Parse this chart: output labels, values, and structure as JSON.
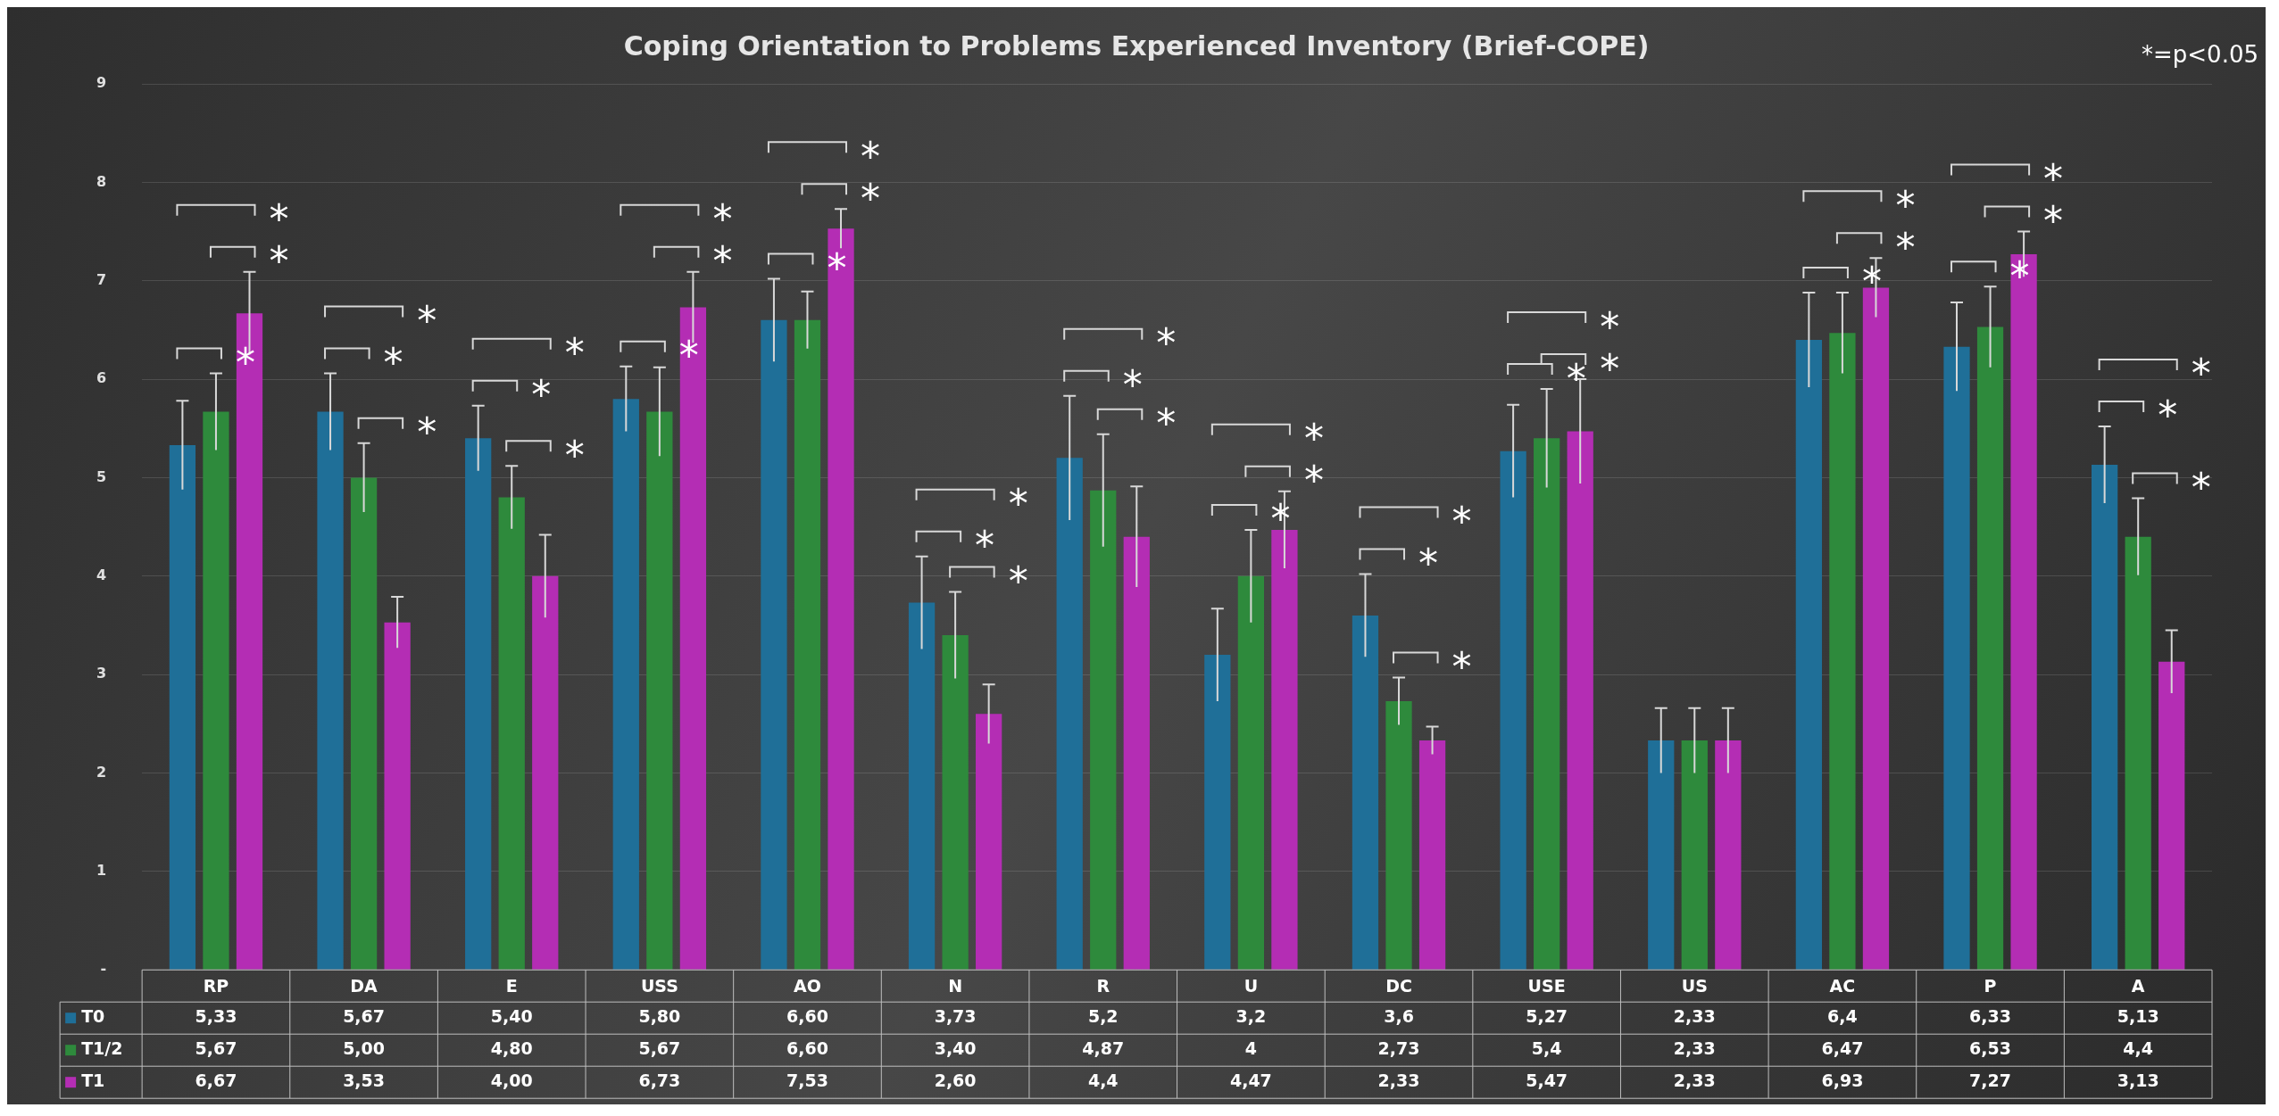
{
  "chart_data": {
    "type": "bar",
    "title": "Coping Orientation to Problems Experienced Inventory (Brief-COPE)",
    "categories": [
      "RP",
      "DA",
      "E",
      "USS",
      "AO",
      "N",
      "R",
      "U",
      "DC",
      "USE",
      "US",
      "AC",
      "P",
      "A"
    ],
    "series": [
      {
        "name": "T0",
        "color": "#1f6f98",
        "values": [
          5.33,
          5.67,
          5.4,
          5.8,
          6.6,
          3.73,
          5.2,
          3.2,
          3.6,
          5.27,
          2.33,
          6.4,
          6.33,
          5.13
        ],
        "value_labels": [
          "5,33",
          "5,67",
          "5,40",
          "5,80",
          "6,60",
          "3,73",
          "5,2",
          "3,2",
          "3,6",
          "5,27",
          "2,33",
          "6,4",
          "6,33",
          "5,13"
        ],
        "errors": [
          0.45,
          0.39,
          0.33,
          0.33,
          0.42,
          0.47,
          0.63,
          0.47,
          0.42,
          0.47,
          0.33,
          0.48,
          0.45,
          0.39
        ]
      },
      {
        "name": "T1/2",
        "color": "#2e8a3c",
        "values": [
          5.67,
          5.0,
          4.8,
          5.67,
          6.6,
          3.4,
          4.87,
          4,
          2.73,
          5.4,
          2.33,
          6.47,
          6.53,
          4.4
        ],
        "value_labels": [
          "5,67",
          "5,00",
          "4,80",
          "5,67",
          "6,60",
          "3,40",
          "4,87",
          "4",
          "2,73",
          "5,4",
          "2,33",
          "6,47",
          "6,53",
          "4,4"
        ],
        "errors": [
          0.39,
          0.35,
          0.32,
          0.45,
          0.29,
          0.44,
          0.57,
          0.47,
          0.24,
          0.5,
          0.33,
          0.41,
          0.41,
          0.39
        ]
      },
      {
        "name": "T1",
        "color": "#b42db4",
        "values": [
          6.67,
          3.53,
          4.0,
          6.73,
          7.53,
          2.6,
          4.4,
          4.47,
          2.33,
          5.47,
          2.33,
          6.93,
          7.27,
          3.13
        ],
        "value_labels": [
          "6,67",
          "3,53",
          "4,00",
          "6,73",
          "7,53",
          "2,60",
          "4,4",
          "4,47",
          "2,33",
          "5,47",
          "2,33",
          "6,93",
          "7,27",
          "3,13"
        ],
        "errors": [
          0.42,
          0.26,
          0.42,
          0.36,
          0.2,
          0.3,
          0.51,
          0.39,
          0.14,
          0.53,
          0.33,
          0.3,
          0.23,
          0.32
        ]
      }
    ],
    "ylim": [
      0,
      9
    ],
    "yticks": [
      {
        "value": 0,
        "label": "-"
      },
      1,
      2,
      3,
      4,
      5,
      6,
      7,
      8,
      9
    ],
    "grid": "y",
    "legend": "bottom",
    "annotations": [
      "*=p<0.05",
      "*",
      "*",
      "*",
      "*",
      "*",
      "*",
      "*",
      "*",
      "*",
      "*",
      "*",
      "*",
      "*",
      "*",
      "*",
      "*",
      "*",
      "*",
      "*",
      "*",
      "*",
      "*",
      "*",
      "*",
      "*",
      "*",
      "*",
      "*",
      "*",
      "*",
      "*",
      "*",
      "*",
      "*",
      "*",
      "*",
      "*",
      "*",
      "*"
    ]
  }
}
